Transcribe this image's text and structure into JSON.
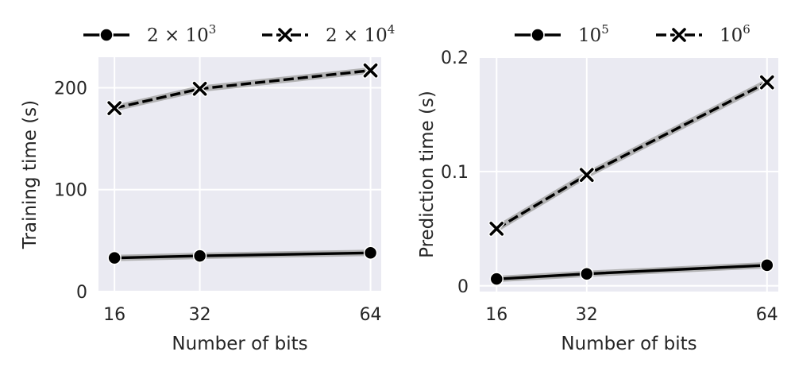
{
  "chart_data": [
    {
      "type": "line",
      "xlabel": "Number of bits",
      "ylabel": "Training time (s)",
      "x": [
        16,
        32,
        64
      ],
      "x_ticks": [
        "16",
        "32",
        "64"
      ],
      "y_ticks": [
        "0",
        "100",
        "200"
      ],
      "xlim": [
        13,
        66
      ],
      "ylim": [
        0,
        230
      ],
      "grid": true,
      "legend_position": "top",
      "series": [
        {
          "name": "2 × 10^3",
          "legend_base": "2 × 10",
          "legend_exp": "3",
          "style": "solid",
          "marker": "circle",
          "values": [
            33,
            35,
            38
          ]
        },
        {
          "name": "2 × 10^4",
          "legend_base": "2 × 10",
          "legend_exp": "4",
          "style": "dashed",
          "marker": "x",
          "values": [
            180,
            199,
            217
          ]
        }
      ]
    },
    {
      "type": "line",
      "xlabel": "Number of bits",
      "ylabel": "Prediction time (s)",
      "x": [
        16,
        32,
        64
      ],
      "x_ticks": [
        "16",
        "32",
        "64"
      ],
      "y_ticks": [
        "0",
        "0.1",
        "0.2"
      ],
      "xlim": [
        13,
        66
      ],
      "ylim": [
        -0.005,
        0.2
      ],
      "grid": true,
      "legend_position": "top",
      "series": [
        {
          "name": "10^5",
          "legend_base": "10",
          "legend_exp": "5",
          "style": "solid",
          "marker": "circle",
          "values": [
            0.006,
            0.0105,
            0.018
          ]
        },
        {
          "name": "10^6",
          "legend_base": "10",
          "legend_exp": "6",
          "style": "dashed",
          "marker": "x",
          "values": [
            0.05,
            0.097,
            0.178
          ]
        }
      ]
    }
  ],
  "colors": {
    "panel_background": "#eaeaf2",
    "grid": "#ffffff",
    "line": "#000000",
    "confidence_band": "#a8a8a8",
    "text": "#262626"
  }
}
